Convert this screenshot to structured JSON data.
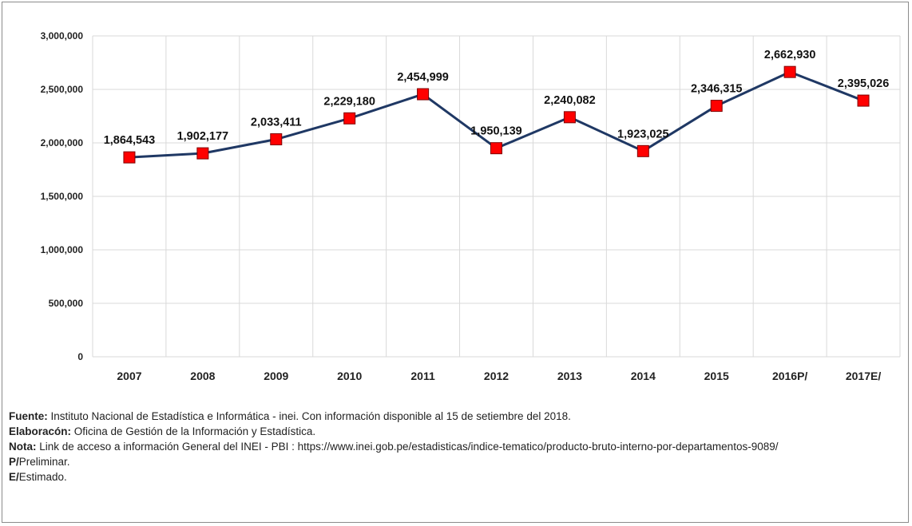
{
  "chart_data": {
    "type": "line",
    "categories": [
      "2007",
      "2008",
      "2009",
      "2010",
      "2011",
      "2012",
      "2013",
      "2014",
      "2015",
      "2016P/",
      "2017E/"
    ],
    "values": [
      1864543,
      1902177,
      2033411,
      2229180,
      2454999,
      1950139,
      2240082,
      1923025,
      2346315,
      2662930,
      2395026
    ],
    "data_labels": [
      "1,864,543",
      "1,902,177",
      "2,033,411",
      "2,229,180",
      "2,454,999",
      "1,950,139",
      "2,240,082",
      "1,923,025",
      "2,346,315",
      "2,662,930",
      "2,395,026"
    ],
    "y_ticks": [
      0,
      500000,
      1000000,
      1500000,
      2000000,
      2500000,
      3000000
    ],
    "y_tick_labels": [
      "0",
      "500,000",
      "1,000,000",
      "1,500,000",
      "2,000,000",
      "2,500,000",
      "3,000,000"
    ],
    "ylim": [
      0,
      3000000
    ],
    "grid": true,
    "legend": "none",
    "colors": {
      "line": "#1f3864",
      "marker": "#ff0000",
      "marker_border": "#7f0000",
      "grid": "#d9d9d9"
    }
  },
  "notes": {
    "fuente_label": "Fuente:",
    "fuente_text": " Instituto Nacional de Estadística e Informática - inei. Con información disponible al 15 de setiembre del 2018.",
    "elaboracion_label": "Elaboracón:",
    "elaboracion_text": " Oficina de Gestión de la Información y Estadística.",
    "nota_label": "Nota:",
    "nota_text": " Link de acceso a información General del INEI - PBI : https://www.inei.gob.pe/estadisticas/indice-tematico/producto-bruto-interno-por-departamentos-9089/",
    "p_label": "P/",
    "p_text": "Preliminar.",
    "e_label": "E/",
    "e_text": "Estimado."
  }
}
